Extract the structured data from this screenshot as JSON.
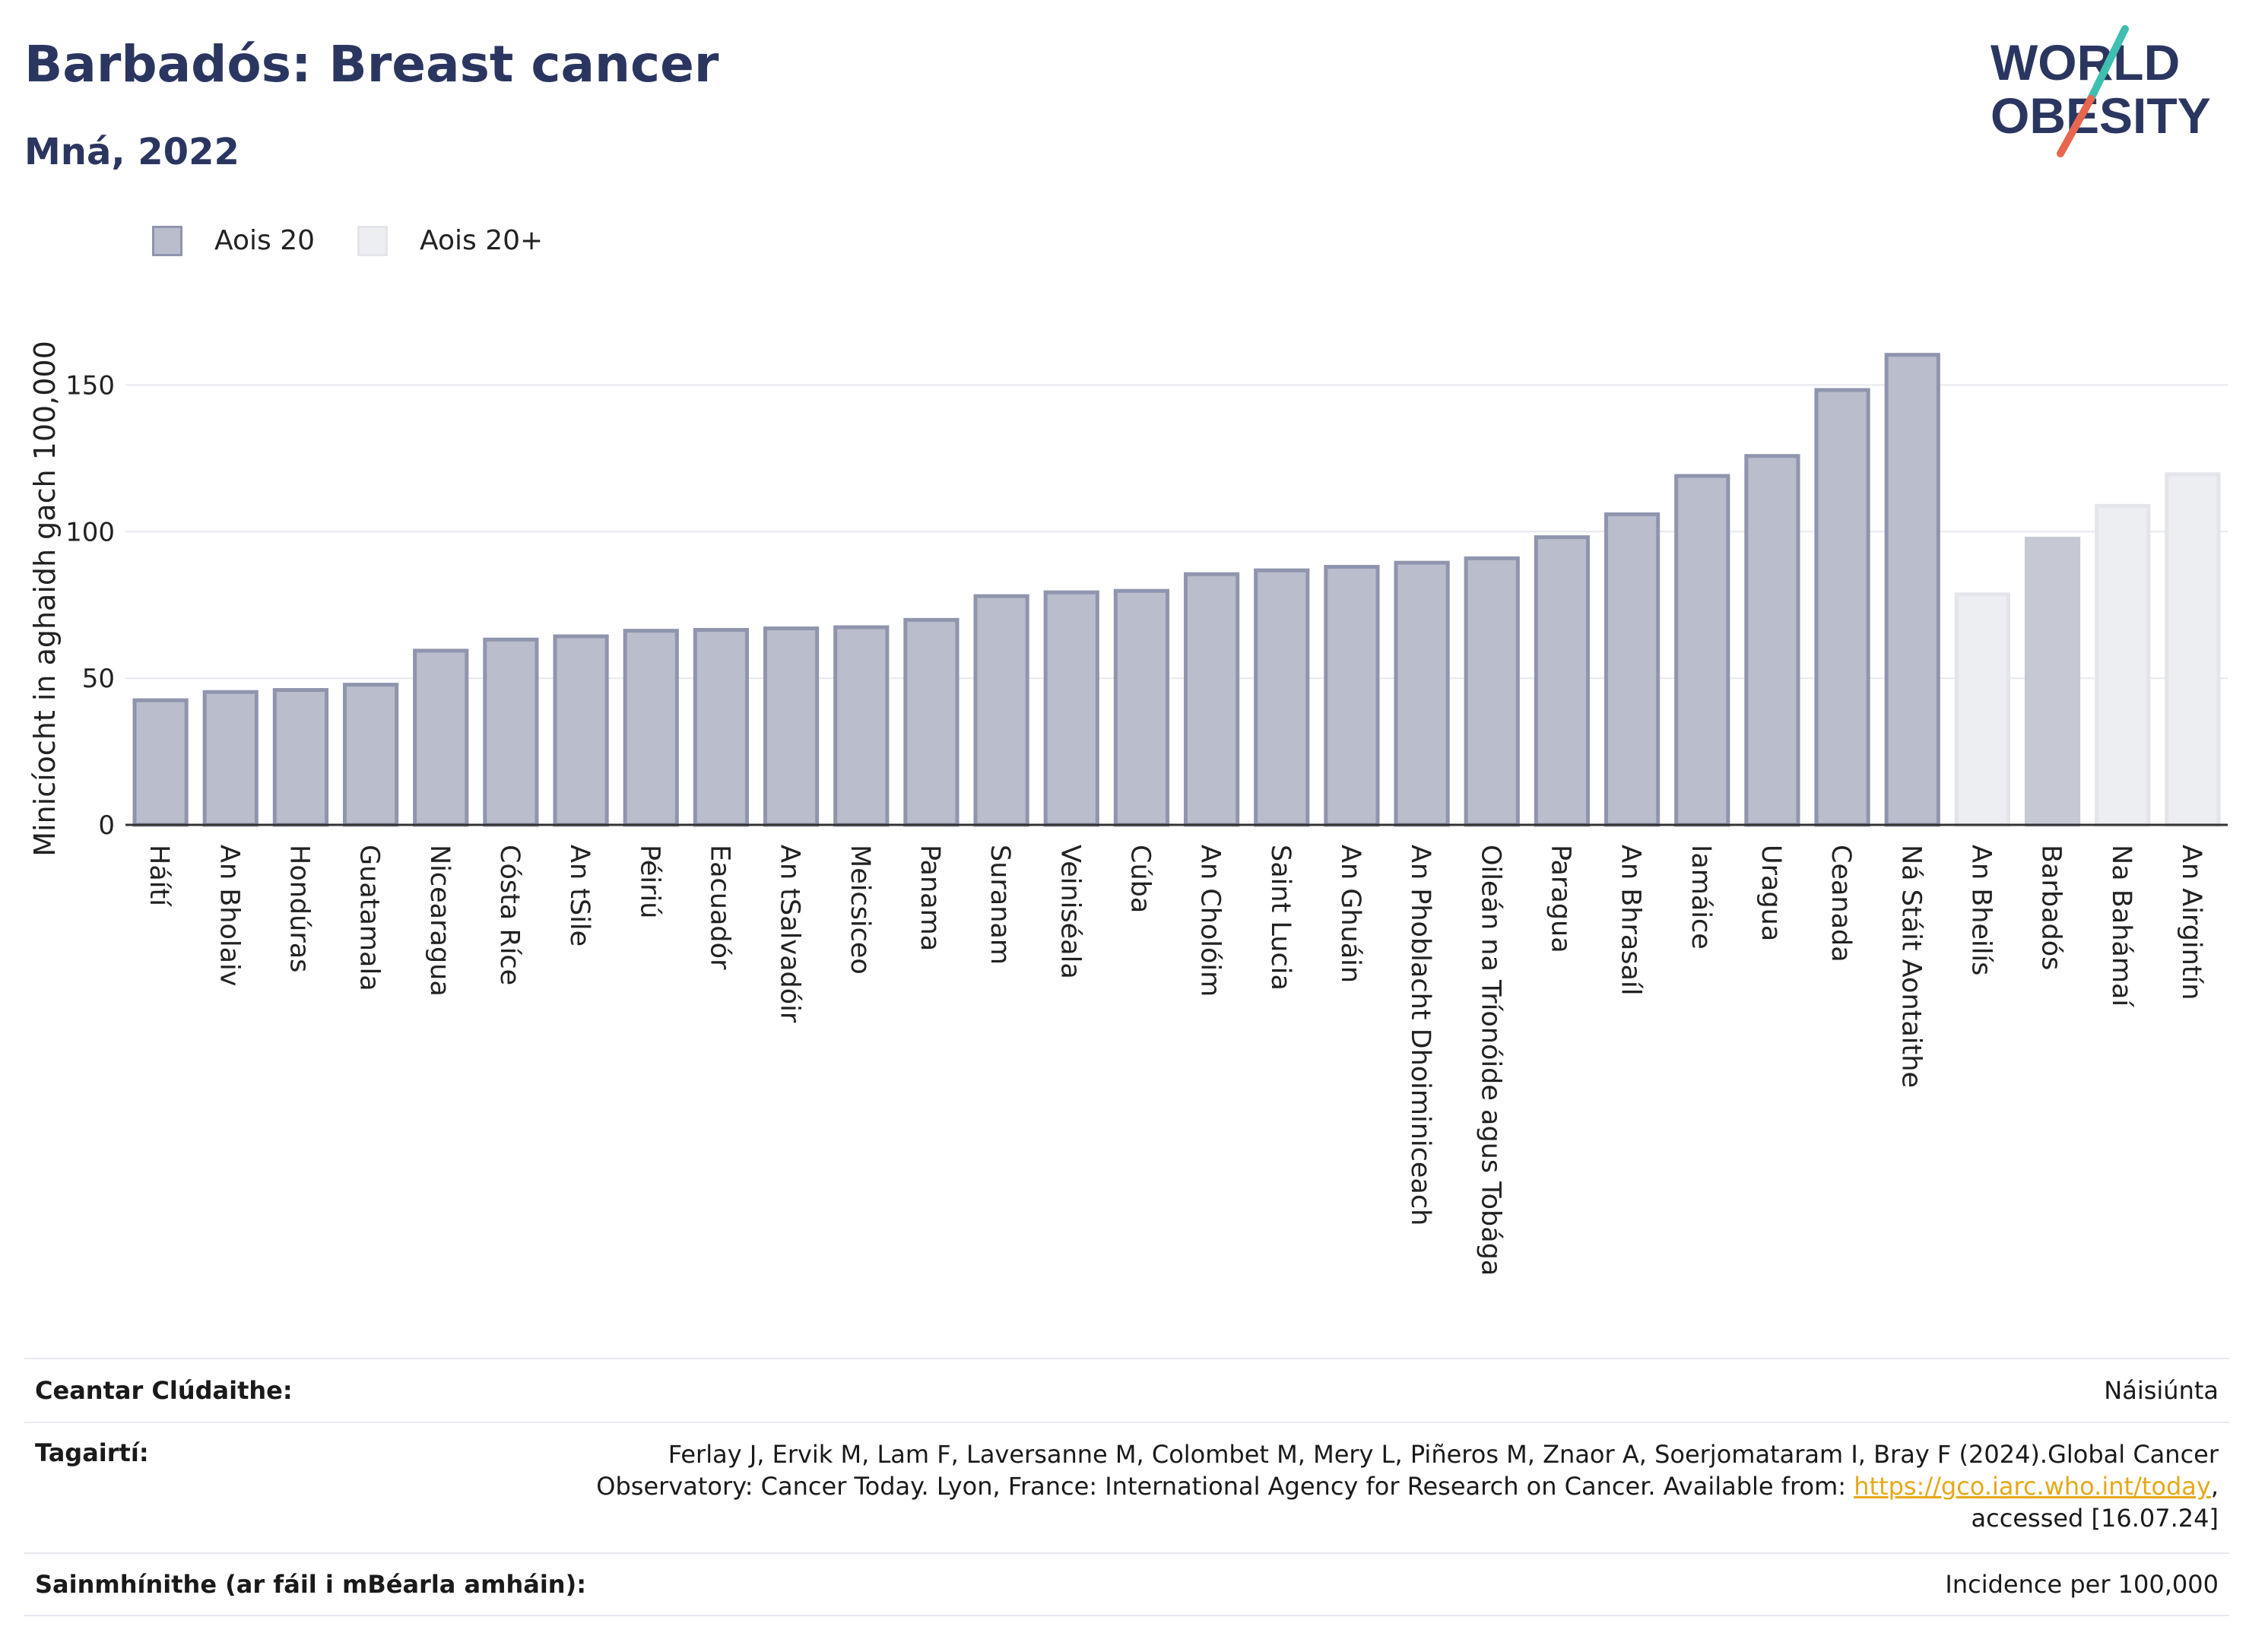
{
  "header": {
    "title": "Barbadós: Breast cancer",
    "subtitle": "Mná, 2022"
  },
  "logo": {
    "line1": "WORLD",
    "line2": "OBESITY"
  },
  "legend": [
    {
      "label": "Aois 20",
      "color": "#b9bdcc",
      "border": "#8f95ad"
    },
    {
      "label": "Aois 20+",
      "color": "#eceef2",
      "border": "#e3e5ea"
    }
  ],
  "chart_data": {
    "type": "bar",
    "ylabel": "Minicíocht in aghaidh gach 100,000",
    "ylim": [
      0,
      175
    ],
    "yticks": [
      0,
      50,
      100,
      150
    ],
    "grid": true,
    "legend_position": "top-left",
    "categories": [
      "Háítí",
      "An Bholaiv",
      "Hondúras",
      "Guatamala",
      "Nicearagua",
      "Cósta Ríce",
      "An tSile",
      "Péiriú",
      "Eacuadór",
      "An tSalvadóir",
      "Meicsiceo",
      "Panama",
      "Suranam",
      "Veiniséala",
      "Cúba",
      "An Cholóim",
      "Saint Lucia",
      "An Ghuáin",
      "An Phoblacht Dhoiminiceach",
      "Oileán na Tríonóide agus Tobága",
      "Paragua",
      "An Bhrasaíl",
      "Iamáice",
      "Uragua",
      "Ceanada",
      "Ná Stáit Aontaithe",
      "An Bheilís",
      "Barbadós",
      "Na Bahámaí",
      "An Airgintín"
    ],
    "values": [
      42.5,
      45.3,
      46.0,
      47.8,
      59.4,
      63.2,
      64.3,
      66.2,
      66.5,
      67.0,
      67.4,
      69.9,
      78.0,
      79.3,
      79.8,
      85.5,
      86.8,
      88.0,
      89.4,
      90.9,
      98.1,
      105.9,
      119.0,
      125.8,
      148.3,
      160.3,
      78.6,
      97.6,
      108.8,
      119.6
    ],
    "series_index": [
      0,
      0,
      0,
      0,
      0,
      0,
      0,
      0,
      0,
      0,
      0,
      0,
      0,
      0,
      0,
      0,
      0,
      0,
      0,
      0,
      0,
      0,
      0,
      0,
      0,
      0,
      1,
      2,
      1,
      1
    ],
    "colors": {
      "aois20": "#b9bdcc",
      "aois20_border": "#8f95ad",
      "aois20plus": "#eceef2",
      "aois20plus_border": "#e3e5ea",
      "highlight": "#c6c8d4",
      "grid": "#e8e9ee",
      "axis": "#333333"
    }
  },
  "footer": {
    "coverage_label": "Ceantar Clúdaithe:",
    "coverage_value": "Náisiúnta",
    "references_label": "Tagairtí:",
    "references_line1": "Ferlay J, Ervik M, Lam F, Laversanne M, Colombet M, Mery L, Piñeros M, Znaor A, Soerjomataram I, Bray F (2024).Global Cancer",
    "references_line2": "Observatory: Cancer Today. Lyon, France: International Agency for Research on Cancer. Available from:",
    "references_link": "https://gco.iarc.who.int/today",
    "references_line3": "accessed [16.07.24]",
    "definitions_label": "Sainmhínithe (ar fáil i mBéarla amháin):",
    "definitions_value": "Incidence per 100,000"
  }
}
